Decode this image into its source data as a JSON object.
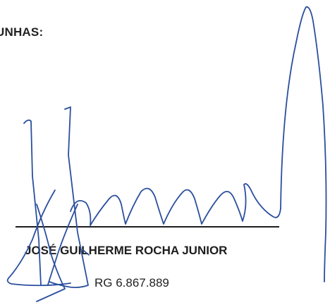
{
  "document": {
    "heading": "UNHAS:",
    "signer_name": "JOSÉ GUILHERME ROCHA JUNIOR",
    "signer_id": "RG 6.867.889",
    "signature": {
      "description_color": "#2b4f9e"
    },
    "colors": {
      "ink": "#2b4f9e",
      "text": "#1d1d1d",
      "background": "#ffffff"
    }
  }
}
